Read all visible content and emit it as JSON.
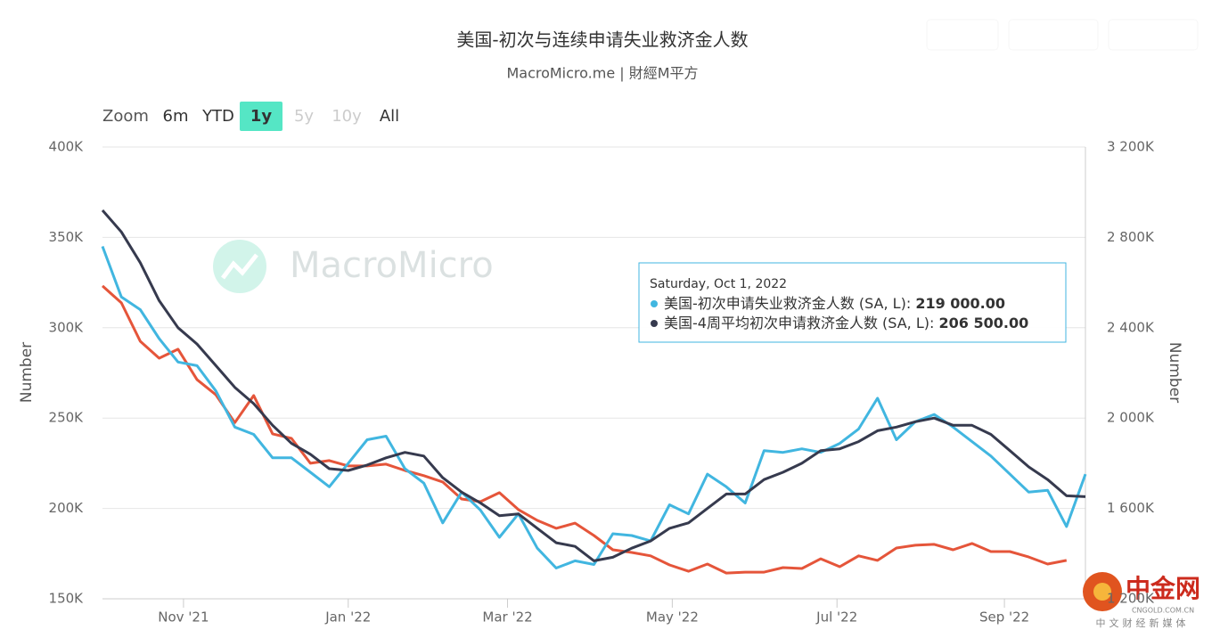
{
  "chart_data": {
    "type": "line",
    "title": "美国-初次与连续申请失业救济金人数",
    "subtitle": "MacroMicro.me | 財經M平方",
    "zoom": {
      "label": "Zoom",
      "buttons": [
        "6m",
        "YTD",
        "1y",
        "5y",
        "10y",
        "All"
      ],
      "selected": 2,
      "disabled": [
        3,
        4
      ]
    },
    "watermark": "MacroMicro",
    "corner_logo": {
      "name": "中金网",
      "site": "CNGOLD.COM.CN",
      "slogan": "中文财经新媒体"
    },
    "y_label": "Number",
    "y2_label": "Number",
    "x": [
      "2021-10-02",
      "2021-10-09",
      "2021-10-16",
      "2021-10-23",
      "2021-10-30",
      "2021-11-06",
      "2021-11-13",
      "2021-11-20",
      "2021-11-27",
      "2021-12-04",
      "2021-12-11",
      "2021-12-18",
      "2021-12-25",
      "2022-01-01",
      "2022-01-08",
      "2022-01-15",
      "2022-01-22",
      "2022-01-29",
      "2022-02-05",
      "2022-02-12",
      "2022-02-19",
      "2022-02-26",
      "2022-03-05",
      "2022-03-12",
      "2022-03-19",
      "2022-03-26",
      "2022-04-02",
      "2022-04-09",
      "2022-04-16",
      "2022-04-23",
      "2022-04-30",
      "2022-05-07",
      "2022-05-14",
      "2022-05-21",
      "2022-05-28",
      "2022-06-04",
      "2022-06-11",
      "2022-06-18",
      "2022-06-25",
      "2022-07-02",
      "2022-07-09",
      "2022-07-16",
      "2022-07-23",
      "2022-07-30",
      "2022-08-06",
      "2022-08-13",
      "2022-08-20",
      "2022-08-27",
      "2022-09-03",
      "2022-09-10",
      "2022-09-17",
      "2022-09-24",
      "2022-10-01"
    ],
    "xlim": [
      "2021-10-02",
      "2022-10-01"
    ],
    "xticks": [
      {
        "value": "2021-11-01",
        "label": "Nov '21"
      },
      {
        "value": "2022-01-01",
        "label": "Jan '22"
      },
      {
        "value": "2022-03-01",
        "label": "Mar '22"
      },
      {
        "value": "2022-05-01",
        "label": "May '22"
      },
      {
        "value": "2022-07-01",
        "label": "Jul '22"
      },
      {
        "value": "2022-09-01",
        "label": "Sep '22"
      }
    ],
    "ylim": [
      150000,
      400000
    ],
    "yticks": [
      {
        "value": 150000,
        "label": "150K"
      },
      {
        "value": 200000,
        "label": "200K"
      },
      {
        "value": 250000,
        "label": "250K"
      },
      {
        "value": 300000,
        "label": "300K"
      },
      {
        "value": 350000,
        "label": "350K"
      },
      {
        "value": 400000,
        "label": "400K"
      }
    ],
    "y2lim": [
      1200000,
      3200000
    ],
    "y2ticks": [
      {
        "value": 1200000,
        "label": "1 200K"
      },
      {
        "value": 1600000,
        "label": "1 600K"
      },
      {
        "value": 2000000,
        "label": "2 000K"
      },
      {
        "value": 2400000,
        "label": "2 400K"
      },
      {
        "value": 2800000,
        "label": "2 800K"
      },
      {
        "value": 3200000,
        "label": "3 200K"
      }
    ],
    "grid": true,
    "series": [
      {
        "color": "#e5553a",
        "axis": "y2",
        "values": [
          2585000,
          2510000,
          2340000,
          2265000,
          2305000,
          2170000,
          2103000,
          1980000,
          2100000,
          1930000,
          1910000,
          1800000,
          1812000,
          1788000,
          1788000,
          1796000,
          1768000,
          1745000,
          1717000,
          1642000,
          1630000,
          1670000,
          1595000,
          1547000,
          1512000,
          1535000,
          1480000,
          1417000,
          1405000,
          1390000,
          1350000,
          1322000,
          1354000,
          1314000,
          1318000,
          1318000,
          1338000,
          1334000,
          1377000,
          1342000,
          1390000,
          1370000,
          1425000,
          1437000,
          1441000,
          1417000,
          1445000,
          1409000,
          1409000,
          1385000,
          1354000,
          1370000,
          null
        ]
      },
      {
        "name": "美国-初次申请失业救济金人数 (SA, L)",
        "color": "#41b6e0",
        "values": [
          345000,
          317000,
          310000,
          294000,
          281000,
          279000,
          265000,
          245000,
          241000,
          228000,
          228000,
          220000,
          212000,
          225000,
          238000,
          240000,
          222000,
          214000,
          192000,
          209000,
          199000,
          184000,
          197000,
          178000,
          167000,
          171000,
          169000,
          186000,
          185000,
          182000,
          202000,
          197000,
          219000,
          212000,
          203000,
          232000,
          231000,
          233000,
          231000,
          236000,
          244000,
          261000,
          238000,
          248000,
          252000,
          245000,
          237000,
          229000,
          219000,
          209000,
          210000,
          190000,
          219000
        ]
      },
      {
        "name": "美国-4周平均初次申请救济金人数 (SA, L)",
        "color": "#363a4e",
        "values": [
          365000,
          353000,
          336000,
          315000,
          300000,
          291000,
          279000,
          267000,
          258000,
          246000,
          236000,
          230000,
          222000,
          221000,
          224000,
          228000,
          231000,
          229000,
          217000,
          209000,
          203000,
          196000,
          197000,
          189000,
          181000,
          179000,
          171000,
          173000,
          178000,
          182000,
          189000,
          192000,
          200000,
          208000,
          208000,
          216000,
          220000,
          225000,
          232000,
          233000,
          237000,
          243000,
          245000,
          248000,
          250000,
          246000,
          246000,
          241000,
          232000,
          223000,
          216000,
          207000,
          206500
        ]
      }
    ],
    "tooltip": {
      "title": "Saturday, Oct 1, 2022",
      "rows": [
        {
          "series": 1,
          "label": "美国-初次申请失业救济金人数 (SA, L): ",
          "value": "219 000.00"
        },
        {
          "series": 2,
          "label": "美国-4周平均初次申请救济金人数 (SA, L): ",
          "value": "206 500.00"
        }
      ]
    }
  }
}
